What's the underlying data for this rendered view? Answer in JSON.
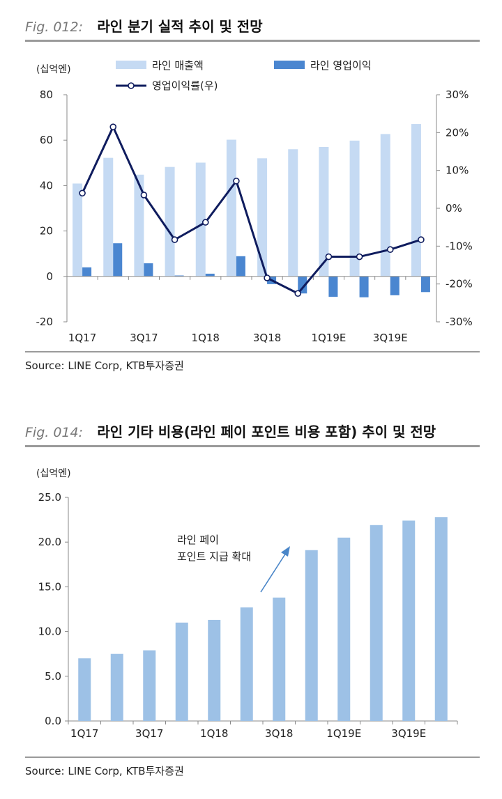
{
  "fig1": {
    "number": "Fig. 012:",
    "title": "라인 분기 실적 추이 및 전망",
    "source": "Source: LINE Corp, KTB투자증권"
  },
  "fig2": {
    "number": "Fig. 014:",
    "title": "라인 기타 비용(라인 페이 포인트 비용 포함) 추이 및 전망",
    "source": "Source: LINE Corp, KTB투자증권"
  },
  "colors": {
    "revenue": "#c5daf3",
    "op_profit": "#4a86d0",
    "margin_line": "#0f1c5e",
    "other_cost": "#9dc1e6",
    "axis": "#8a8a8a",
    "arrow": "#4a86c8"
  },
  "chart_data": [
    {
      "type": "bar+line",
      "unit_label": "(십억엔)",
      "categories": [
        "1Q17",
        "2Q17",
        "3Q17",
        "4Q17",
        "1Q18",
        "2Q18",
        "3Q18",
        "4Q18",
        "1Q19E",
        "2Q19E",
        "3Q19E",
        "4Q19E"
      ],
      "tick_labels": [
        "1Q17",
        "3Q17",
        "1Q18",
        "3Q18",
        "1Q19E",
        "3Q19E"
      ],
      "y_left": {
        "min": -20,
        "max": 80,
        "ticks": [
          "-20",
          "0",
          "20",
          "40",
          "60",
          "80"
        ]
      },
      "y_right": {
        "min": -30,
        "max": 30,
        "ticks": [
          "-30%",
          "-20%",
          "-10%",
          "0%",
          "10%",
          "20%",
          "30%"
        ]
      },
      "legend_position": "top",
      "series": [
        {
          "name": "라인 매출액",
          "type": "bar",
          "axis": "left",
          "values": [
            40.9,
            52.2,
            44.8,
            48.2,
            50.1,
            60.2,
            52.0,
            56.0,
            57.0,
            59.8,
            62.7,
            67.1
          ]
        },
        {
          "name": "라인 영업이익",
          "type": "bar",
          "axis": "left",
          "values": [
            4.0,
            14.6,
            5.8,
            0.4,
            1.2,
            8.9,
            -3.4,
            -7.5,
            -9.0,
            -9.2,
            -8.3,
            -6.9
          ]
        },
        {
          "name": "영업이익률(우)",
          "type": "line",
          "axis": "right",
          "values": [
            4.0,
            21.5,
            3.5,
            -8.3,
            -3.7,
            7.2,
            -18.4,
            -22.5,
            -12.8,
            -12.8,
            -10.9,
            -8.3
          ]
        }
      ]
    },
    {
      "type": "bar",
      "unit_label": "(십억엔)",
      "categories": [
        "1Q17",
        "2Q17",
        "3Q17",
        "4Q17",
        "1Q18",
        "2Q18",
        "3Q18",
        "4Q18",
        "1Q19E",
        "2Q19E",
        "3Q19E",
        "4Q19E"
      ],
      "tick_labels": [
        "1Q17",
        "3Q17",
        "1Q18",
        "3Q18",
        "1Q19E",
        "3Q19E"
      ],
      "y": {
        "min": 0,
        "max": 25,
        "ticks": [
          "0.0",
          "5.0",
          "10.0",
          "15.0",
          "20.0",
          "25.0"
        ]
      },
      "values": [
        7.0,
        7.5,
        7.9,
        11.0,
        11.3,
        12.7,
        13.8,
        19.1,
        20.5,
        21.9,
        22.4,
        22.8
      ],
      "annotation_lines": [
        "라인 페이",
        "포인트 지급 확대"
      ]
    }
  ]
}
